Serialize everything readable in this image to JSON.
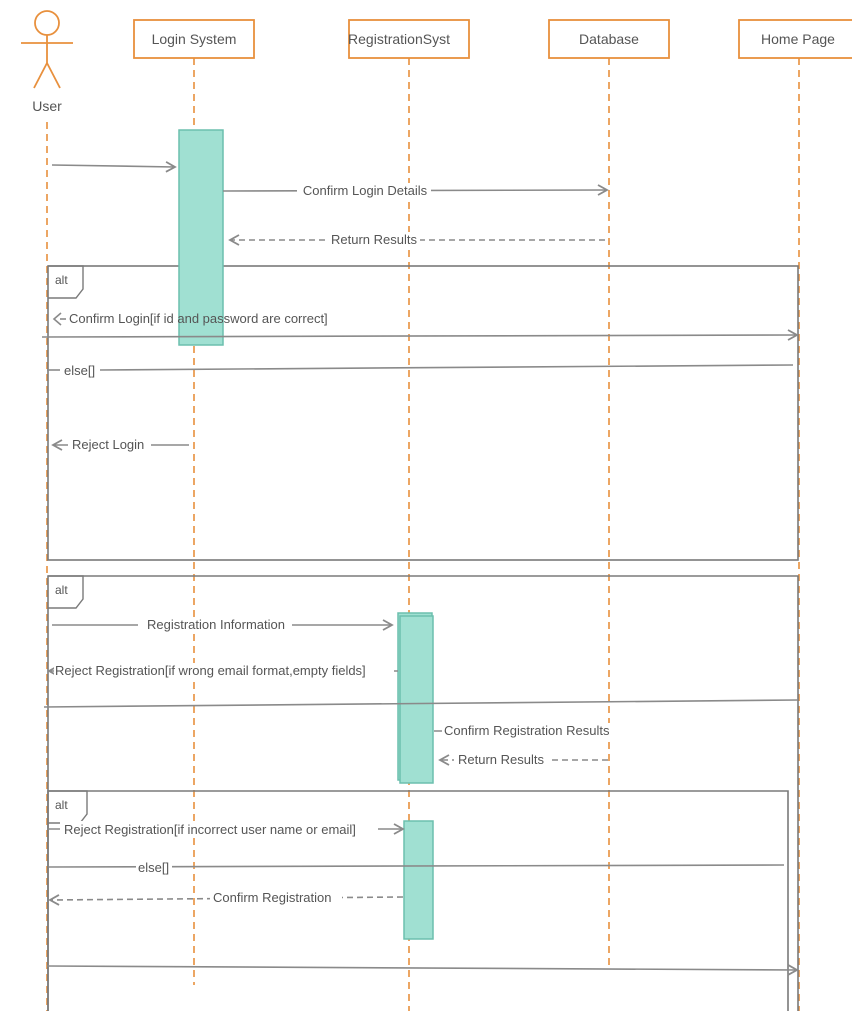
{
  "actor": {
    "label": "User"
  },
  "lifelines": [
    {
      "label": "Login System"
    },
    {
      "label": "RegistrationSyst"
    },
    {
      "label": "Database"
    },
    {
      "label": "Home Page"
    }
  ],
  "frames": [
    {
      "tag": "alt"
    },
    {
      "tag": "alt"
    },
    {
      "tag": "alt"
    }
  ],
  "messages": [
    {
      "label": "Confirm Login Details"
    },
    {
      "label": "Return Results"
    },
    {
      "label": "Confirm Login[if id and password are correct]"
    },
    {
      "label": "else[]"
    },
    {
      "label": "Reject Login"
    },
    {
      "label": "Registration Information"
    },
    {
      "label": "Reject Registration[if wrong email format,empty fields]"
    },
    {
      "label": "Confirm Registration Results"
    },
    {
      "label": "Return Results"
    },
    {
      "label": "Reject Registration[if incorrect user name or email]"
    },
    {
      "label": "else[]"
    },
    {
      "label": "Confirm Registration"
    }
  ],
  "colors": {
    "lifeline": "#e8903d",
    "activation_fill": "#a0e0d2",
    "activation_stroke": "#6cbfae",
    "line": "#8a8a8a",
    "text": "#555555"
  }
}
